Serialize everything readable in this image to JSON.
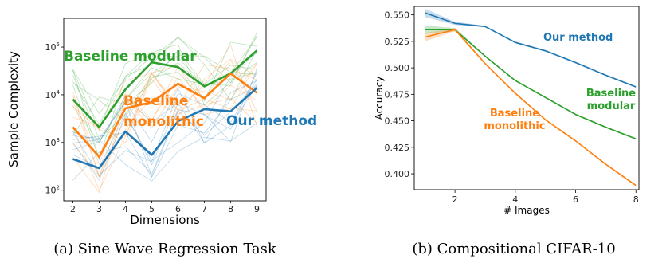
{
  "captions": {
    "a": "(a) Sine Wave Regression Task",
    "b": "(b) Compositional CIFAR-10"
  },
  "colors": {
    "our": "#1f77b4",
    "monolithic": "#ff7f0e",
    "modular": "#2ca02c"
  },
  "chart_data": [
    {
      "type": "line",
      "xlabel": "Dimensions",
      "ylabel": "Sample Complexity",
      "x": [
        2,
        3,
        4,
        5,
        6,
        7,
        8,
        9
      ],
      "xticks": [
        "2",
        "3",
        "4",
        "5",
        "6",
        "7",
        "8",
        "9"
      ],
      "yscale": "log",
      "ylim": [
        60,
        400000
      ],
      "yticks": [
        {
          "value": 100,
          "base": "10",
          "exp": "2"
        },
        {
          "value": 1000,
          "base": "10",
          "exp": "3"
        },
        {
          "value": 10000,
          "base": "10",
          "exp": "4"
        },
        {
          "value": 100000,
          "base": "10",
          "exp": "5"
        }
      ],
      "series": [
        {
          "name": "Baseline modular",
          "color": "#2ca02c",
          "values": [
            8000,
            2100,
            13000,
            48000,
            38000,
            15000,
            28000,
            85000
          ]
        },
        {
          "name": "Baseline monolithic",
          "color": "#ff7f0e",
          "values": [
            2100,
            500,
            5200,
            7000,
            17000,
            8500,
            28000,
            11000
          ]
        },
        {
          "name": "Our method",
          "color": "#1f77b4",
          "values": [
            450,
            290,
            1700,
            550,
            2800,
            5000,
            4500,
            14000
          ]
        }
      ],
      "annotations": [
        {
          "text": "Baseline modular",
          "series": "Baseline modular"
        },
        {
          "text": "Baseline",
          "series": "Baseline monolithic"
        },
        {
          "text": "monolithic",
          "series": "Baseline monolithic"
        },
        {
          "text": "Our method",
          "series": "Our method"
        }
      ]
    },
    {
      "type": "line",
      "xlabel": "# Images",
      "ylabel": "Accuracy",
      "x": [
        1,
        2,
        3,
        4,
        5,
        6,
        7,
        8
      ],
      "xticks": [
        "2",
        "4",
        "6",
        "8"
      ],
      "xtick_values": [
        2,
        4,
        6,
        8
      ],
      "xlim": [
        0.65,
        8.1
      ],
      "ylim": [
        0.385,
        0.558
      ],
      "yticks": [
        "0.400",
        "0.425",
        "0.450",
        "0.475",
        "0.500",
        "0.525",
        "0.550"
      ],
      "ytick_values": [
        0.4,
        0.425,
        0.45,
        0.475,
        0.5,
        0.525,
        0.55
      ],
      "grid": false,
      "series": [
        {
          "name": "Our method",
          "color": "#1f77b4",
          "values": [
            0.552,
            0.542,
            0.539,
            0.524,
            0.516,
            0.505,
            0.493,
            0.482
          ]
        },
        {
          "name": "Baseline modular",
          "color": "#2ca02c",
          "values": [
            0.536,
            0.536,
            0.511,
            0.488,
            0.472,
            0.456,
            0.444,
            0.433
          ]
        },
        {
          "name": "Baseline monolithic",
          "color": "#ff7f0e",
          "values": [
            0.529,
            0.536,
            0.504,
            0.476,
            0.451,
            0.431,
            0.409,
            0.389
          ]
        }
      ],
      "annotations": [
        {
          "text": "Our method",
          "series": "Our method"
        },
        {
          "text": "Baseline",
          "series": "Baseline modular"
        },
        {
          "text": "modular",
          "series": "Baseline modular"
        },
        {
          "text": "Baseline",
          "series": "Baseline monolithic"
        },
        {
          "text": "monolithic",
          "series": "Baseline monolithic"
        }
      ]
    }
  ]
}
